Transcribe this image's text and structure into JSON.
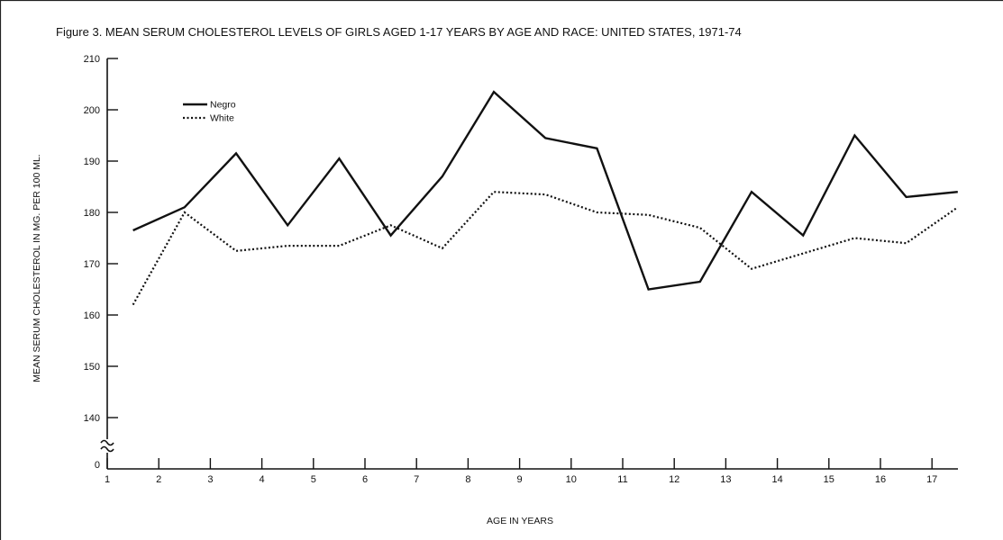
{
  "chart_data": {
    "type": "line",
    "title": "Figure 3. MEAN SERUM CHOLESTEROL LEVELS OF GIRLS AGED 1-17 YEARS BY AGE AND RACE: UNITED STATES, 1971-74",
    "xlabel": "AGE IN YEARS",
    "ylabel": "MEAN SERUM CHOLESTEROL IN MG. PER 100 ML.",
    "x_ticks": [
      1,
      2,
      3,
      4,
      5,
      6,
      7,
      8,
      9,
      10,
      11,
      12,
      13,
      14,
      15,
      16,
      17
    ],
    "y_ticks": [
      140,
      150,
      160,
      170,
      180,
      190,
      200,
      210
    ],
    "y_zero_label": "0",
    "ylim": [
      135,
      210
    ],
    "xlim": [
      1,
      17.5
    ],
    "x": [
      1.5,
      2.5,
      3.5,
      4.5,
      5.5,
      6.5,
      7.5,
      8.5,
      9.5,
      10.5,
      11.5,
      12.5,
      13.5,
      14.5,
      15.5,
      16.5,
      17.5
    ],
    "series": [
      {
        "name": "Negro",
        "style": "solid",
        "values": [
          176.5,
          181,
          191.5,
          177.5,
          190.5,
          175.5,
          187,
          203.5,
          194.5,
          192.5,
          165,
          166.5,
          184,
          175.5,
          195,
          183,
          184
        ]
      },
      {
        "name": "White",
        "style": "dotted",
        "values": [
          162,
          180,
          172.5,
          173.5,
          173.5,
          177.5,
          173,
          184,
          183.5,
          180,
          179.5,
          177,
          169,
          172,
          175,
          174,
          181
        ]
      }
    ],
    "legend": "top-left",
    "grid": false
  }
}
